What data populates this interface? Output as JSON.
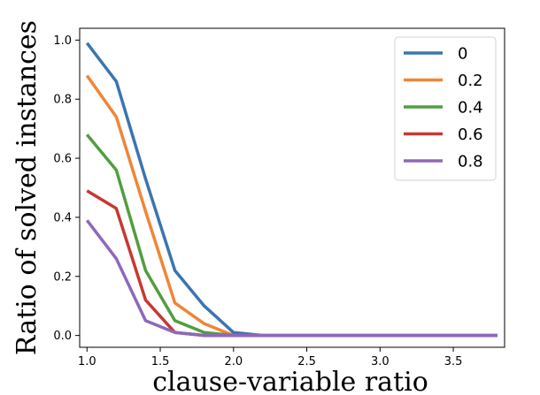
{
  "chart_data": {
    "type": "line",
    "title": "",
    "xlabel": "clause-variable ratio",
    "ylabel": "Ratio of solved instances",
    "xlim": [
      0.95,
      3.85
    ],
    "ylim": [
      -0.04,
      1.04
    ],
    "xticks": [
      1.0,
      1.5,
      2.0,
      2.5,
      3.0,
      3.5
    ],
    "xtick_labels": [
      "1.0",
      "1.5",
      "2.0",
      "2.5",
      "3.0",
      "3.5"
    ],
    "yticks": [
      0.0,
      0.2,
      0.4,
      0.6,
      0.8,
      1.0
    ],
    "ytick_labels": [
      "0.0",
      "0.2",
      "0.4",
      "0.6",
      "0.8",
      "1.0"
    ],
    "grid": false,
    "legend_position": "top-right",
    "x": [
      1.0,
      1.2,
      1.4,
      1.6,
      1.8,
      2.0,
      2.2,
      2.4,
      2.6,
      2.8,
      3.0,
      3.2,
      3.4,
      3.6,
      3.8
    ],
    "series": [
      {
        "name": "0",
        "color": "#3b75af",
        "values": [
          0.99,
          0.86,
          0.53,
          0.22,
          0.1,
          0.01,
          0.0,
          0.0,
          0.0,
          0.0,
          0.0,
          0.0,
          0.0,
          0.0,
          0.0
        ]
      },
      {
        "name": "0.2",
        "color": "#ef8636",
        "values": [
          0.88,
          0.74,
          0.42,
          0.11,
          0.04,
          0.0,
          0.0,
          0.0,
          0.0,
          0.0,
          0.0,
          0.0,
          0.0,
          0.0,
          0.0
        ]
      },
      {
        "name": "0.4",
        "color": "#519e3e",
        "values": [
          0.68,
          0.56,
          0.22,
          0.05,
          0.01,
          0.0,
          0.0,
          0.0,
          0.0,
          0.0,
          0.0,
          0.0,
          0.0,
          0.0,
          0.0
        ]
      },
      {
        "name": "0.6",
        "color": "#c53932",
        "values": [
          0.49,
          0.43,
          0.12,
          0.01,
          0.0,
          0.0,
          0.0,
          0.0,
          0.0,
          0.0,
          0.0,
          0.0,
          0.0,
          0.0,
          0.0
        ]
      },
      {
        "name": "0.8",
        "color": "#8d69b8",
        "values": [
          0.39,
          0.26,
          0.05,
          0.01,
          0.0,
          0.0,
          0.0,
          0.0,
          0.0,
          0.0,
          0.0,
          0.0,
          0.0,
          0.0,
          0.0
        ]
      }
    ]
  }
}
